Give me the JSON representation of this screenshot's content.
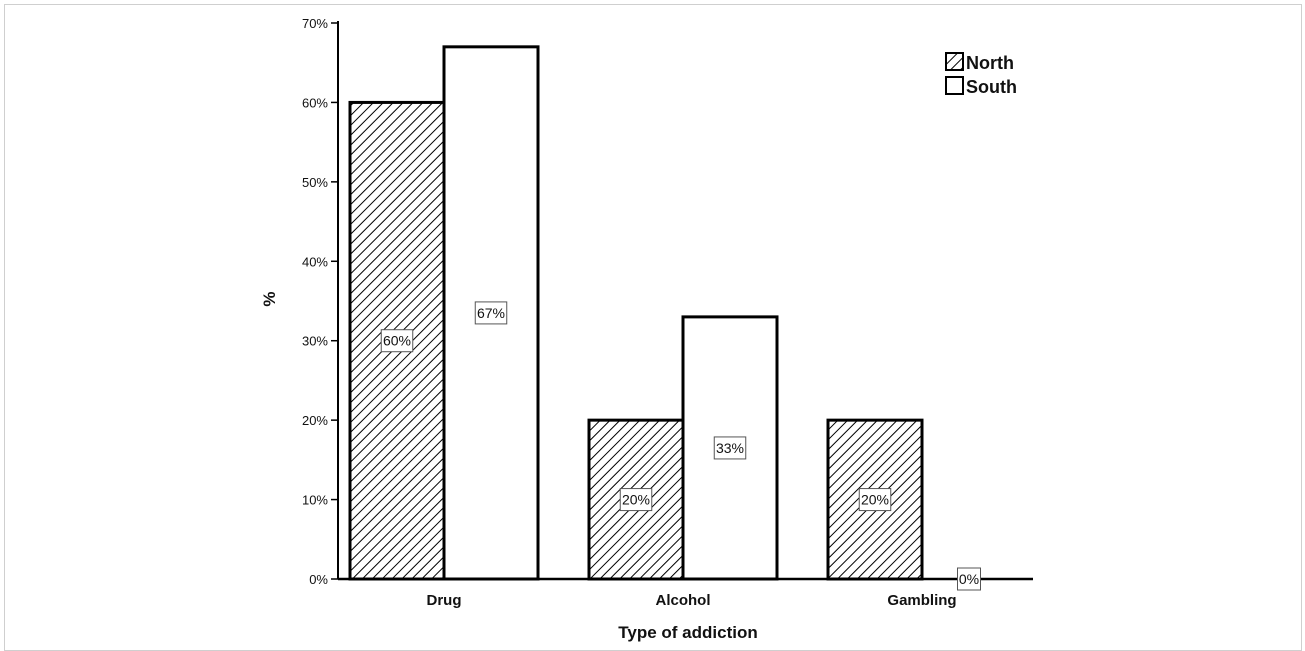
{
  "chart_data": {
    "type": "bar",
    "categories": [
      "Drug",
      "Alcohol",
      "Gambling"
    ],
    "series": [
      {
        "name": "North",
        "values": [
          60,
          20,
          20
        ],
        "labels": [
          "60%",
          "20%",
          "20%"
        ],
        "fill": "hatched"
      },
      {
        "name": "South",
        "values": [
          67,
          33,
          0
        ],
        "labels": [
          "67%",
          "33%",
          "0%"
        ],
        "fill": "#ffffff"
      }
    ],
    "title": "",
    "xlabel": "Type of addiction",
    "ylabel": "%",
    "ylim": [
      0,
      70
    ],
    "yticks": [
      0,
      10,
      20,
      30,
      40,
      50,
      60,
      70
    ],
    "ytick_labels": [
      "0%",
      "10%",
      "20%",
      "30%",
      "40%",
      "50%",
      "60%",
      "70%"
    ],
    "grid": false,
    "legend_position": "top-right",
    "colors": {
      "bar_stroke": "#000000",
      "hatch": "#000000",
      "background": "#ffffff"
    }
  }
}
